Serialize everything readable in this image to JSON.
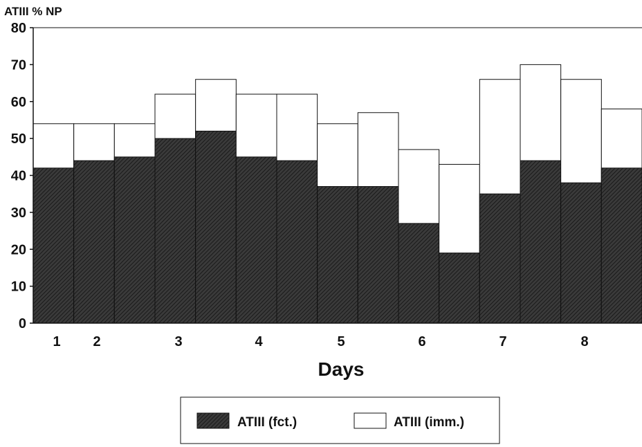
{
  "chart_data": {
    "type": "bar",
    "ylabel": "ATIII % NP",
    "xlabel": "Days",
    "ylim": [
      0,
      80
    ],
    "yticks": [
      0,
      10,
      20,
      30,
      40,
      50,
      60,
      70,
      80
    ],
    "xtick_labels": [
      "1",
      "2",
      "3",
      "4",
      "5",
      "6",
      "7",
      "8"
    ],
    "grid": false,
    "legend_placement": "bottom-center",
    "series": [
      {
        "name": "ATIII (fct.)",
        "values": [
          42,
          44,
          45,
          50,
          52,
          45,
          44,
          37,
          37,
          27,
          19,
          35,
          44,
          38,
          42
        ]
      },
      {
        "name": "ATIII (imm.)",
        "values": [
          54,
          54,
          54,
          62,
          66,
          62,
          62,
          54,
          57,
          47,
          43,
          66,
          70,
          66,
          58
        ]
      }
    ],
    "colors": {
      "fct": "#2a2a2a",
      "imm": "#ffffff",
      "axis": "#111111"
    }
  }
}
